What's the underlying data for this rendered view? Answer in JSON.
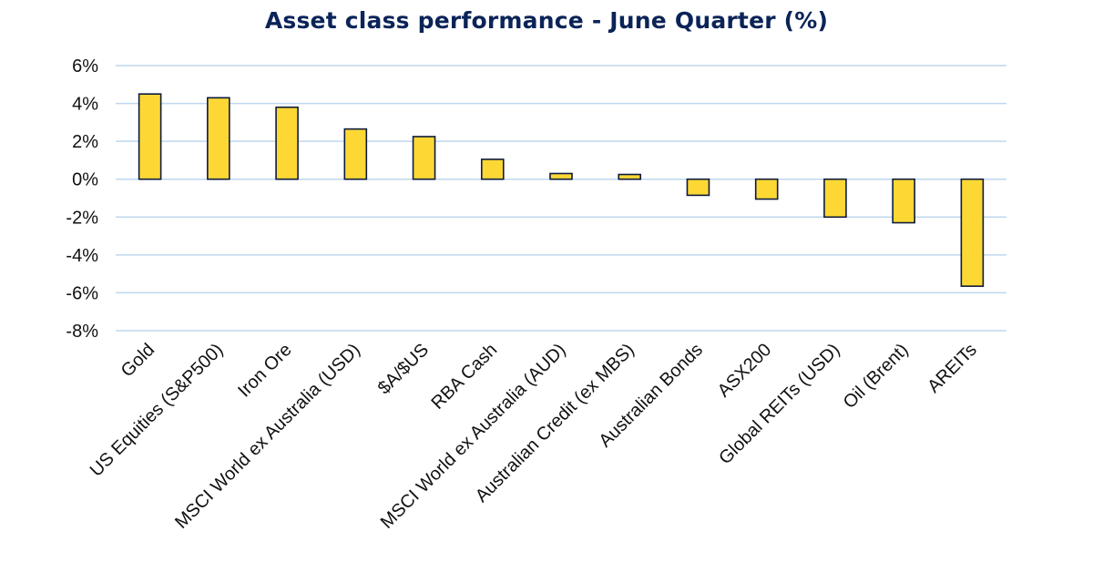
{
  "chart_data": {
    "type": "bar",
    "title": "Asset class performance - June Quarter (%)",
    "xlabel": "",
    "ylabel": "",
    "categories": [
      "Gold",
      "US Equities (S&P500)",
      "Iron Ore",
      "MSCI World ex Australia (USD)",
      "$A/$US",
      "RBA Cash",
      "MSCI World ex Australia (AUD)",
      "Australian Credit (ex MBS)",
      "Australian Bonds",
      "ASX200",
      "Global REITs (USD)",
      "Oil (Brent)",
      "AREITs"
    ],
    "values": [
      4.5,
      4.3,
      3.8,
      2.65,
      2.25,
      1.05,
      0.3,
      0.25,
      -0.85,
      -1.05,
      -2.0,
      -2.3,
      -5.65
    ],
    "ylim": [
      -8,
      6
    ],
    "yticks": [
      6,
      4,
      2,
      0,
      -2,
      -4,
      -6,
      -8
    ],
    "ytick_labels": [
      "6%",
      "4%",
      "2%",
      "0%",
      "-2%",
      "-4%",
      "-6%",
      "-8%"
    ],
    "grid": true,
    "legend": "none",
    "colors": {
      "bar_fill": "#fdd835",
      "bar_edge": "#0d1b3e",
      "title": "#0b2458",
      "grid": "#bfd7ee"
    }
  }
}
